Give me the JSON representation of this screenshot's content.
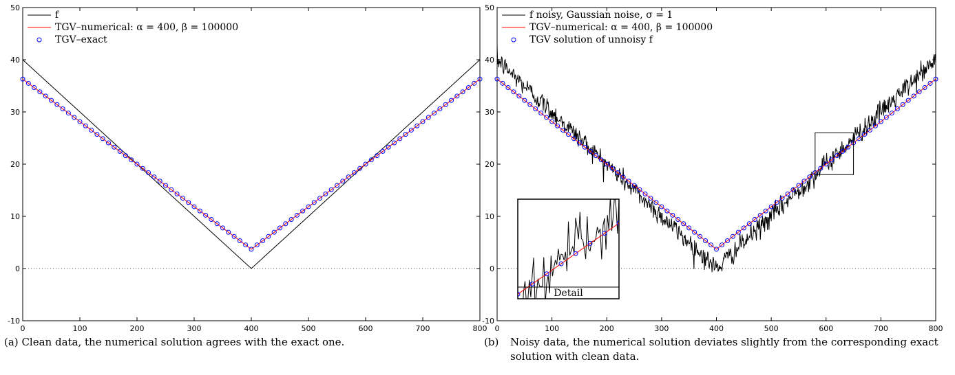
{
  "panels": [
    {
      "id": "a",
      "caption_label": "(a)",
      "caption": "Clean data, the numerical solution agrees with the exact one.",
      "legend": [
        {
          "label": "f",
          "style": "line",
          "color": "#000000"
        },
        {
          "label": "TGV–numerical: α = 400, β = 100000",
          "style": "line",
          "color": "#ff0000"
        },
        {
          "label": "TGV–exact",
          "style": "marker",
          "color": "#0000ff"
        }
      ]
    },
    {
      "id": "b",
      "caption_label": "(b)",
      "caption": "Noisy data, the numerical solution deviates slightly from the corresponding exact solution with clean data.",
      "legend": [
        {
          "label": "f noisy, Gaussian noise, σ = 1",
          "style": "line",
          "color": "#000000"
        },
        {
          "label": "TGV–numerical: α = 400, β = 100000",
          "style": "line",
          "color": "#ff0000"
        },
        {
          "label": "TGV solution of unnoisy f",
          "style": "marker",
          "color": "#0000ff"
        }
      ],
      "inset_label": "Detail"
    }
  ],
  "chart_data": [
    {
      "type": "line",
      "xlim": [
        0,
        800
      ],
      "ylim": [
        -10,
        50
      ],
      "xticks": [
        0,
        100,
        200,
        300,
        400,
        500,
        600,
        700,
        800
      ],
      "yticks": [
        -10,
        0,
        10,
        20,
        30,
        40,
        50
      ],
      "zero_line": "dotted",
      "series": [
        {
          "name": "f",
          "x": [
            0,
            400,
            800
          ],
          "y": [
            40,
            0,
            40
          ],
          "color": "#000000"
        },
        {
          "name": "TGV–numerical: α = 400, β = 100000",
          "x": [
            0,
            400,
            800
          ],
          "y": [
            36.3,
            3.7,
            36.3
          ],
          "color": "#ff0000"
        },
        {
          "name": "TGV–exact",
          "marker": "circle",
          "x_start": 0,
          "x_step": 10,
          "x_end": 800,
          "y_at_0": 36.3,
          "y_at_400": 3.7,
          "color": "#0000ff"
        }
      ]
    },
    {
      "type": "line",
      "xlim": [
        0,
        800
      ],
      "ylim": [
        -10,
        50
      ],
      "xticks": [
        0,
        100,
        200,
        300,
        400,
        500,
        600,
        700,
        800
      ],
      "yticks": [
        -10,
        0,
        10,
        20,
        30,
        40,
        50
      ],
      "zero_line": "dotted",
      "noise_sigma": 1,
      "detail_box": {
        "x": [
          580,
          650
        ],
        "y": [
          18,
          26
        ]
      },
      "series": [
        {
          "name": "f noisy, Gaussian noise, σ = 1",
          "x": [
            0,
            400,
            800
          ],
          "y": [
            40,
            0,
            40
          ],
          "noisy": true,
          "color": "#000000"
        },
        {
          "name": "TGV–numerical: α = 400, β = 100000",
          "x": [
            0,
            400,
            800
          ],
          "y": [
            36.3,
            3.7,
            36.3
          ],
          "color": "#ff0000"
        },
        {
          "name": "TGV solution of unnoisy f",
          "marker": "circle",
          "x_start": 0,
          "x_step": 10,
          "x_end": 800,
          "y_at_0": 36.3,
          "y_at_400": 3.7,
          "color": "#0000ff"
        }
      ]
    }
  ]
}
